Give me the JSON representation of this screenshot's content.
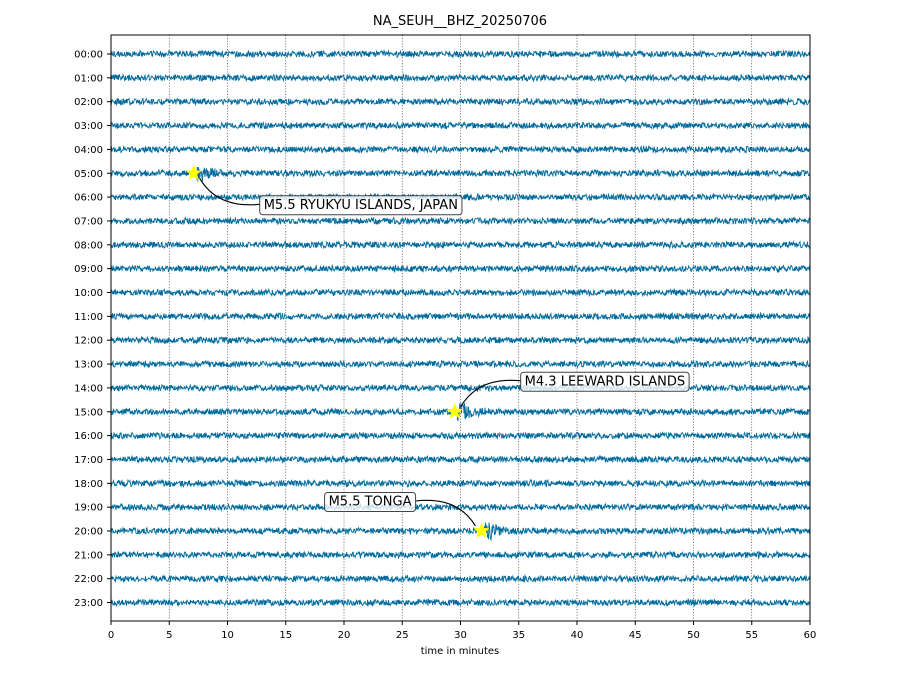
{
  "chart_data": {
    "type": "line",
    "title": "NA_SEUH__BHZ_20250706",
    "xlabel": "time in minutes",
    "ylabel": "",
    "xlim": [
      0,
      60
    ],
    "xticks": [
      0,
      5,
      10,
      15,
      20,
      25,
      30,
      35,
      40,
      45,
      50,
      55,
      60
    ],
    "grid": "vertical dotted",
    "trace_color": "#006b9c",
    "star_color": "#ffff00",
    "rows": [
      "00:00",
      "01:00",
      "02:00",
      "03:00",
      "04:00",
      "05:00",
      "06:00",
      "07:00",
      "08:00",
      "09:00",
      "10:00",
      "11:00",
      "12:00",
      "13:00",
      "14:00",
      "15:00",
      "16:00",
      "17:00",
      "18:00",
      "19:00",
      "20:00",
      "21:00",
      "22:00",
      "23:00"
    ],
    "events": [
      {
        "label": "M5.5 RYUKYU ISLANDS, JAPAN",
        "row": "05:00",
        "minute": 7.1
      },
      {
        "label": "M4.3 LEEWARD ISLANDS",
        "row": "15:00",
        "minute": 29.5
      },
      {
        "label": "M5.5 TONGA",
        "row": "20:00",
        "minute": 31.8
      }
    ]
  }
}
